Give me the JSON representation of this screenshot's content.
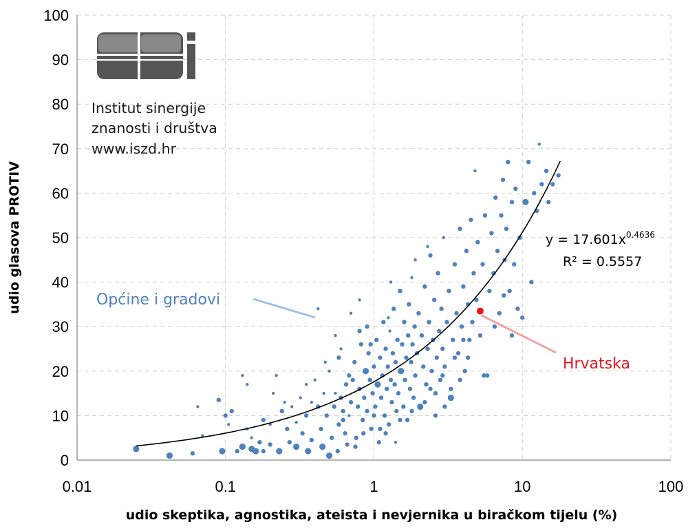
{
  "chart_data": {
    "type": "scatter",
    "xscale": "log",
    "xlim": [
      0.01,
      100
    ],
    "ylim": [
      0,
      100
    ],
    "xticks": [
      "0.01",
      "0.1",
      "1",
      "10",
      "100"
    ],
    "yticks": [
      "0",
      "10",
      "20",
      "30",
      "40",
      "50",
      "60",
      "70",
      "80",
      "90",
      "100"
    ],
    "xlabel": "udio skeptika, agnostika, ateista i nevjernika u biračkom tijelu (%)",
    "ylabel": "udio glasova PROTIV",
    "grid": true,
    "colors": {
      "points": "#4f81bd",
      "highlight": "#e8141c",
      "trend": "#000000",
      "blue_label": "#4f81bd",
      "red_label": "#e8141c"
    },
    "trendline": {
      "type": "power",
      "a": 17.601,
      "b": 0.4636,
      "x_range": [
        0.025,
        18
      ],
      "equation_prefix": "y = 17.601x",
      "equation_exponent": "0.4636",
      "r2_label": "R² = 0.5557"
    },
    "annotations": {
      "series_label": "Općine i gradovi",
      "highlight_label": "Hrvatska"
    },
    "highlight_point": {
      "x": 5.2,
      "y": 33.5
    },
    "points": [
      [
        0.025,
        2.5,
        2
      ],
      [
        0.042,
        1,
        2
      ],
      [
        0.06,
        1.5,
        1
      ],
      [
        0.09,
        13.5,
        1
      ],
      [
        0.065,
        12,
        0
      ],
      [
        0.07,
        5.5,
        0
      ],
      [
        0.095,
        2,
        2
      ],
      [
        0.1,
        10,
        1
      ],
      [
        0.105,
        8,
        0
      ],
      [
        0.11,
        11,
        1
      ],
      [
        0.12,
        2,
        1
      ],
      [
        0.13,
        3,
        2
      ],
      [
        0.13,
        19,
        0
      ],
      [
        0.14,
        17,
        0
      ],
      [
        0.14,
        7,
        0
      ],
      [
        0.15,
        2.5,
        2
      ],
      [
        0.15,
        5,
        0
      ],
      [
        0.16,
        2,
        2
      ],
      [
        0.17,
        4,
        1
      ],
      [
        0.18,
        9,
        1
      ],
      [
        0.18,
        2,
        1
      ],
      [
        0.2,
        3.5,
        1
      ],
      [
        0.2,
        8,
        0
      ],
      [
        0.21,
        15,
        0
      ],
      [
        0.22,
        19,
        0
      ],
      [
        0.23,
        2,
        2
      ],
      [
        0.24,
        11,
        1
      ],
      [
        0.25,
        13,
        0
      ],
      [
        0.26,
        7,
        1
      ],
      [
        0.27,
        4,
        1
      ],
      [
        0.28,
        12,
        0
      ],
      [
        0.3,
        8.5,
        0
      ],
      [
        0.3,
        3,
        2
      ],
      [
        0.32,
        14,
        0
      ],
      [
        0.33,
        6,
        1
      ],
      [
        0.35,
        10,
        1
      ],
      [
        0.36,
        2,
        2
      ],
      [
        0.38,
        13,
        0
      ],
      [
        0.38,
        4.5,
        1
      ],
      [
        0.4,
        18,
        0
      ],
      [
        0.42,
        12,
        1
      ],
      [
        0.42,
        34,
        0
      ],
      [
        0.44,
        7,
        1
      ],
      [
        0.45,
        3,
        2
      ],
      [
        0.46,
        15,
        0
      ],
      [
        0.48,
        10,
        1
      ],
      [
        0.5,
        1,
        2
      ],
      [
        0.5,
        20,
        0
      ],
      [
        0.52,
        5,
        1
      ],
      [
        0.54,
        12,
        1
      ],
      [
        0.55,
        15,
        0
      ],
      [
        0.57,
        2,
        1
      ],
      [
        0.58,
        8,
        1
      ],
      [
        0.6,
        14,
        1
      ],
      [
        0.6,
        25,
        0
      ],
      [
        0.62,
        11,
        1
      ],
      [
        0.64,
        6,
        1
      ],
      [
        0.65,
        17,
        1
      ],
      [
        0.66,
        3.5,
        1
      ],
      [
        0.68,
        10,
        0
      ],
      [
        0.7,
        13,
        1
      ],
      [
        0.72,
        18,
        1
      ],
      [
        0.74,
        22,
        1
      ],
      [
        0.76,
        5,
        1
      ],
      [
        0.78,
        12,
        1
      ],
      [
        0.8,
        16,
        1
      ],
      [
        0.8,
        36,
        0
      ],
      [
        0.82,
        26,
        1
      ],
      [
        0.84,
        9,
        1
      ],
      [
        0.86,
        14,
        1
      ],
      [
        0.88,
        20,
        2
      ],
      [
        0.9,
        11,
        1
      ],
      [
        0.9,
        30,
        1
      ],
      [
        0.92,
        24,
        1
      ],
      [
        0.94,
        18,
        1
      ],
      [
        0.96,
        7,
        1
      ],
      [
        0.98,
        15,
        1
      ],
      [
        1.0,
        21,
        1
      ],
      [
        1.02,
        12,
        1
      ],
      [
        1.04,
        27,
        1
      ],
      [
        1.06,
        17,
        2
      ],
      [
        1.08,
        4,
        1
      ],
      [
        1.1,
        23,
        1
      ],
      [
        1.12,
        14,
        1
      ],
      [
        1.14,
        19,
        1
      ],
      [
        1.16,
        31,
        1
      ],
      [
        1.18,
        10,
        1
      ],
      [
        1.2,
        25,
        1
      ],
      [
        1.22,
        16,
        1
      ],
      [
        1.24,
        21,
        1
      ],
      [
        1.26,
        8,
        1
      ],
      [
        1.28,
        29,
        0
      ],
      [
        1.3,
        18,
        1
      ],
      [
        1.32,
        13,
        1
      ],
      [
        1.34,
        24,
        1
      ],
      [
        1.36,
        34,
        1
      ],
      [
        1.38,
        17,
        1
      ],
      [
        1.4,
        22,
        1
      ],
      [
        1.42,
        11,
        1
      ],
      [
        1.44,
        27,
        1
      ],
      [
        1.46,
        15,
        1
      ],
      [
        1.5,
        38,
        1
      ],
      [
        1.52,
        20,
        2
      ],
      [
        1.55,
        26,
        1
      ],
      [
        1.58,
        12,
        1
      ],
      [
        1.6,
        31,
        1
      ],
      [
        1.62,
        18,
        1
      ],
      [
        1.65,
        23,
        1
      ],
      [
        1.68,
        9,
        1
      ],
      [
        1.7,
        28,
        1
      ],
      [
        1.72,
        35,
        1
      ],
      [
        1.75,
        16,
        1
      ],
      [
        1.78,
        22,
        1
      ],
      [
        1.8,
        41,
        0
      ],
      [
        1.82,
        26,
        1
      ],
      [
        1.85,
        14,
        1
      ],
      [
        1.88,
        30,
        1
      ],
      [
        1.9,
        19,
        1
      ],
      [
        1.95,
        24,
        1
      ],
      [
        2.0,
        33,
        1
      ],
      [
        2.05,
        12,
        2
      ],
      [
        2.1,
        28,
        1
      ],
      [
        2.15,
        21,
        1
      ],
      [
        2.2,
        39,
        1
      ],
      [
        2.25,
        17,
        1
      ],
      [
        2.3,
        25,
        1
      ],
      [
        2.35,
        31,
        1
      ],
      [
        2.4,
        46,
        1
      ],
      [
        2.45,
        20,
        1
      ],
      [
        2.5,
        27,
        1
      ],
      [
        2.55,
        36,
        1
      ],
      [
        2.6,
        15,
        1
      ],
      [
        2.65,
        23,
        1
      ],
      [
        2.7,
        42,
        1
      ],
      [
        2.75,
        29,
        1
      ],
      [
        2.8,
        18,
        1
      ],
      [
        2.85,
        34,
        1
      ],
      [
        2.9,
        25,
        1
      ],
      [
        2.95,
        50,
        0
      ],
      [
        3.0,
        21,
        1
      ],
      [
        3.1,
        31,
        1
      ],
      [
        3.2,
        38,
        1
      ],
      [
        3.3,
        14,
        2
      ],
      [
        3.4,
        27,
        1
      ],
      [
        3.5,
        44,
        1
      ],
      [
        3.6,
        33,
        1
      ],
      [
        3.7,
        24,
        1
      ],
      [
        3.8,
        52,
        1
      ],
      [
        3.9,
        30,
        1
      ],
      [
        4.0,
        39,
        1
      ],
      [
        4.1,
        20,
        1
      ],
      [
        4.2,
        47,
        1
      ],
      [
        4.3,
        35,
        1
      ],
      [
        4.4,
        27,
        1
      ],
      [
        4.5,
        54,
        1
      ],
      [
        4.6,
        31,
        1
      ],
      [
        4.7,
        42,
        1
      ],
      [
        4.8,
        65,
        0
      ],
      [
        4.9,
        36,
        1
      ],
      [
        5.0,
        49,
        1
      ],
      [
        5.2,
        28,
        1
      ],
      [
        5.4,
        44,
        1
      ],
      [
        5.6,
        55,
        1
      ],
      [
        5.8,
        19,
        1
      ],
      [
        6.0,
        38,
        1
      ],
      [
        6.2,
        51,
        1
      ],
      [
        6.4,
        42,
        1
      ],
      [
        6.6,
        59,
        1
      ],
      [
        6.8,
        47,
        1
      ],
      [
        7.0,
        33,
        1
      ],
      [
        7.2,
        55,
        1
      ],
      [
        7.4,
        63,
        1
      ],
      [
        7.6,
        45,
        1
      ],
      [
        7.8,
        52,
        1
      ],
      [
        8.0,
        67,
        1
      ],
      [
        8.2,
        38,
        1
      ],
      [
        8.5,
        58,
        1
      ],
      [
        8.8,
        44,
        1
      ],
      [
        9.0,
        61,
        1
      ],
      [
        9.3,
        34,
        1
      ],
      [
        9.6,
        50,
        1
      ],
      [
        10.0,
        32,
        1
      ],
      [
        10.5,
        58,
        2
      ],
      [
        11.0,
        67,
        1
      ],
      [
        11.5,
        40,
        1
      ],
      [
        12.0,
        60,
        1
      ],
      [
        12.5,
        56,
        1
      ],
      [
        13.0,
        71,
        0
      ],
      [
        13.5,
        62,
        1
      ],
      [
        14.5,
        65,
        1
      ],
      [
        15.0,
        58,
        1
      ],
      [
        16.0,
        62,
        1
      ],
      [
        17.5,
        64,
        1
      ],
      [
        0.35,
        17,
        0
      ],
      [
        0.47,
        22,
        0
      ],
      [
        0.55,
        28,
        0
      ],
      [
        0.7,
        33,
        0
      ],
      [
        1.3,
        40,
        0
      ],
      [
        1.9,
        45,
        0
      ],
      [
        2.3,
        48,
        0
      ],
      [
        0.62,
        9,
        1
      ],
      [
        0.75,
        3,
        1
      ],
      [
        0.85,
        6,
        1
      ],
      [
        1.0,
        10,
        1
      ],
      [
        1.2,
        6,
        1
      ],
      [
        1.5,
        9,
        1
      ],
      [
        1.8,
        11,
        1
      ],
      [
        2.2,
        13,
        1
      ],
      [
        2.6,
        10,
        1
      ],
      [
        3.0,
        12,
        1
      ],
      [
        3.3,
        16,
        1
      ],
      [
        3.8,
        18,
        1
      ],
      [
        4.3,
        23,
        1
      ],
      [
        5.5,
        19,
        1
      ],
      [
        6.5,
        30,
        1
      ],
      [
        7.5,
        37,
        1
      ],
      [
        8.5,
        28,
        1
      ],
      [
        1.4,
        4,
        0
      ],
      [
        1.1,
        7,
        1
      ],
      [
        0.95,
        26,
        1
      ],
      [
        1.25,
        32,
        0
      ],
      [
        2.4,
        16,
        1
      ],
      [
        2.9,
        19,
        1
      ],
      [
        3.5,
        23,
        1
      ],
      [
        4.0,
        27,
        1
      ],
      [
        0.8,
        29,
        1
      ],
      [
        0.68,
        19,
        1
      ],
      [
        0.58,
        23,
        1
      ]
    ]
  },
  "institute": {
    "logo_text": "ISZD logo",
    "line1": "Institut sinergije",
    "line2": "znanosti i društva",
    "line3": "www.iszd.hr"
  }
}
